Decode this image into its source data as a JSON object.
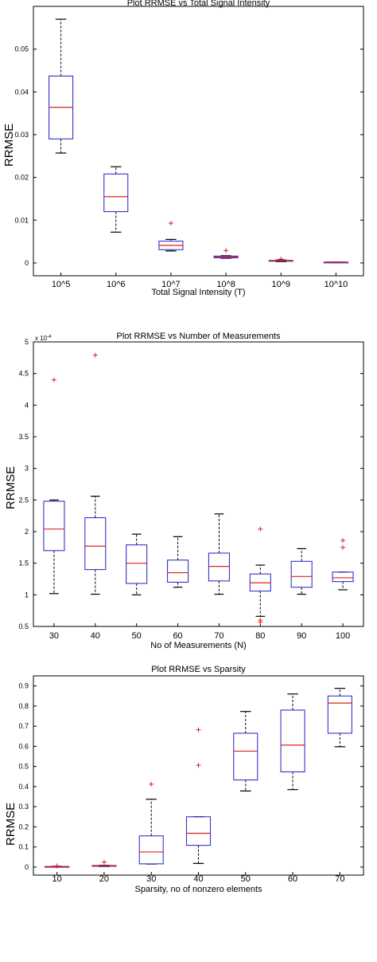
{
  "chart_data": [
    {
      "type": "box",
      "title": "Plot RRMSE vs Total Signal Intensity",
      "xlabel": "Total Signal Intensity (T)",
      "ylabel": "RRMSE",
      "ylim": [
        -0.003,
        0.06
      ],
      "yticks": [
        0,
        0.01,
        0.02,
        0.03,
        0.04,
        0.05
      ],
      "ytick_labels": [
        "0",
        "0.01",
        "0.02",
        "0.03",
        "0.04",
        "0.05"
      ],
      "y_exponent_label": "",
      "categories": [
        "10^5",
        "10^6",
        "10^7",
        "10^8",
        "10^9",
        "10^10"
      ],
      "boxes": [
        {
          "whislo": 0.0257,
          "q1": 0.029,
          "med": 0.0364,
          "q3": 0.0437,
          "whishi": 0.057,
          "fliers": []
        },
        {
          "whislo": 0.0072,
          "q1": 0.012,
          "med": 0.0155,
          "q3": 0.0208,
          "whishi": 0.0225,
          "fliers": []
        },
        {
          "whislo": 0.0028,
          "q1": 0.0031,
          "med": 0.0041,
          "q3": 0.0051,
          "whishi": 0.0055,
          "fliers": [
            0.0093
          ]
        },
        {
          "whislo": 0.0011,
          "q1": 0.0012,
          "med": 0.0014,
          "q3": 0.0016,
          "whishi": 0.0017,
          "fliers": [
            0.0029
          ]
        },
        {
          "whislo": 0.0003,
          "q1": 0.0004,
          "med": 0.0005,
          "q3": 0.0006,
          "whishi": 0.0007,
          "fliers": [
            0.0009
          ]
        },
        {
          "whislo": 0.0001,
          "q1": 0.0001,
          "med": 0.0002,
          "q3": 0.0002,
          "whishi": 0.0002,
          "fliers": []
        }
      ]
    },
    {
      "type": "box",
      "title": "Plot RRMSE vs Number of Measurements",
      "xlabel": "No of Measurements (N)",
      "ylabel": "RRMSE",
      "ylim": [
        0.5,
        5
      ],
      "yticks": [
        0.5,
        1,
        1.5,
        2,
        2.5,
        3,
        3.5,
        4,
        4.5,
        5
      ],
      "ytick_labels": [
        "0.5",
        "1",
        "1.5",
        "2",
        "2.5",
        "3",
        "3.5",
        "4",
        "4.5",
        "5"
      ],
      "y_exponent_label": "x 10",
      "y_exponent_power": "-4",
      "categories": [
        "30",
        "40",
        "50",
        "60",
        "70",
        "80",
        "90",
        "100"
      ],
      "boxes": [
        {
          "whislo": 1.02,
          "q1": 1.7,
          "med": 2.04,
          "q3": 2.48,
          "whishi": 2.5,
          "fliers": [
            4.4
          ]
        },
        {
          "whislo": 1.01,
          "q1": 1.4,
          "med": 1.77,
          "q3": 2.22,
          "whishi": 2.56,
          "fliers": [
            4.79
          ]
        },
        {
          "whislo": 1.0,
          "q1": 1.18,
          "med": 1.5,
          "q3": 1.79,
          "whishi": 1.96,
          "fliers": []
        },
        {
          "whislo": 1.12,
          "q1": 1.2,
          "med": 1.35,
          "q3": 1.55,
          "whishi": 1.92,
          "fliers": []
        },
        {
          "whislo": 1.01,
          "q1": 1.22,
          "med": 1.45,
          "q3": 1.66,
          "whishi": 2.28,
          "fliers": []
        },
        {
          "whislo": 0.66,
          "q1": 1.06,
          "med": 1.19,
          "q3": 1.33,
          "whishi": 1.47,
          "fliers": [
            2.04,
            0.6,
            0.57
          ]
        },
        {
          "whislo": 1.01,
          "q1": 1.12,
          "med": 1.29,
          "q3": 1.53,
          "whishi": 1.73,
          "fliers": []
        },
        {
          "whislo": 1.08,
          "q1": 1.21,
          "med": 1.27,
          "q3": 1.36,
          "whishi": 1.36,
          "fliers": [
            1.86,
            1.75
          ]
        }
      ]
    },
    {
      "type": "box",
      "title": "Plot RRMSE vs Sparsity",
      "xlabel": "Sparsity, no of nonzero elements",
      "ylabel": "RRMSE",
      "ylim": [
        -0.04,
        0.95
      ],
      "yticks": [
        0,
        0.1,
        0.2,
        0.3,
        0.4,
        0.5,
        0.6,
        0.7,
        0.8,
        0.9
      ],
      "ytick_labels": [
        "0",
        "0.1",
        "0.2",
        "0.3",
        "0.4",
        "0.5",
        "0.6",
        "0.7",
        "0.8",
        "0.9"
      ],
      "y_exponent_label": "",
      "categories": [
        "10",
        "20",
        "30",
        "40",
        "50",
        "60",
        "70"
      ],
      "boxes": [
        {
          "whislo": 0.0,
          "q1": 0.001,
          "med": 0.002,
          "q3": 0.003,
          "whishi": 0.004,
          "fliers": [
            0.006
          ]
        },
        {
          "whislo": 0.003,
          "q1": 0.004,
          "med": 0.006,
          "q3": 0.008,
          "whishi": 0.009,
          "fliers": [
            0.025
          ]
        },
        {
          "whislo": 0.015,
          "q1": 0.016,
          "med": 0.075,
          "q3": 0.155,
          "whishi": 0.337,
          "fliers": [
            0.412
          ]
        },
        {
          "whislo": 0.018,
          "q1": 0.108,
          "med": 0.168,
          "q3": 0.25,
          "whishi": 0.25,
          "fliers": [
            0.682,
            0.506
          ]
        },
        {
          "whislo": 0.378,
          "q1": 0.433,
          "med": 0.576,
          "q3": 0.665,
          "whishi": 0.773,
          "fliers": []
        },
        {
          "whislo": 0.385,
          "q1": 0.473,
          "med": 0.606,
          "q3": 0.78,
          "whishi": 0.86,
          "fliers": []
        },
        {
          "whislo": 0.598,
          "q1": 0.665,
          "med": 0.815,
          "q3": 0.85,
          "whishi": 0.888,
          "fliers": []
        }
      ]
    }
  ],
  "colors": {
    "box": "#3333cc",
    "box_thick": "#1a1aa8",
    "median": "#e0201a",
    "whisker": "#000000",
    "flier": "#e0201a",
    "axis": "#000000"
  }
}
